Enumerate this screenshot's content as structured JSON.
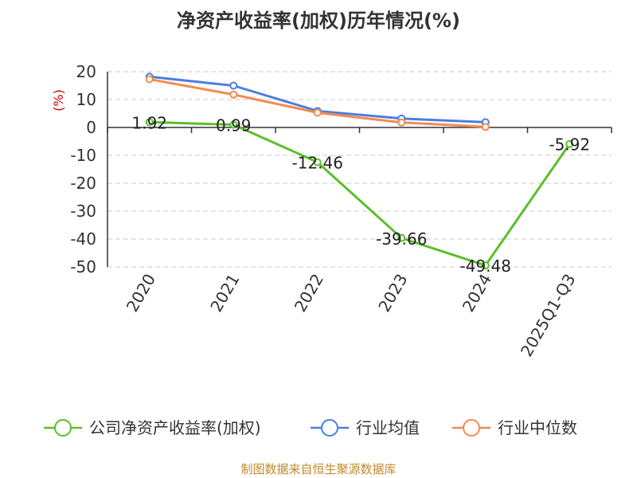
{
  "chart_data": {
    "type": "line",
    "title": "净资产收益率(加权)历年情况(%)",
    "ylabel": "(%)",
    "categories": [
      "2020",
      "2021",
      "2022",
      "2023",
      "2024",
      "2025Q1-Q3"
    ],
    "ylim": [
      -50,
      20
    ],
    "yticks": [
      20,
      10,
      0,
      -10,
      -20,
      -30,
      -40,
      -50
    ],
    "grid": true,
    "legend_position": "bottom",
    "series": [
      {
        "name": "公司净资产收益率(加权)",
        "color": "#5bbf2a",
        "values": [
          1.92,
          0.99,
          -12.46,
          -39.66,
          -49.48,
          -5.92
        ],
        "labels": [
          "1.92",
          "0.99",
          "-12.46",
          "-39.66",
          "-49.48",
          "-5.92"
        ]
      },
      {
        "name": "行业均值",
        "color": "#4a7fe0",
        "values": [
          18.2,
          15.0,
          5.9,
          3.2,
          1.9,
          null
        ]
      },
      {
        "name": "行业中位数",
        "color": "#f58a4f",
        "values": [
          17.3,
          11.8,
          5.3,
          1.8,
          0.2,
          null
        ]
      }
    ]
  },
  "source_note": "制图数据来自恒生聚源数据库"
}
